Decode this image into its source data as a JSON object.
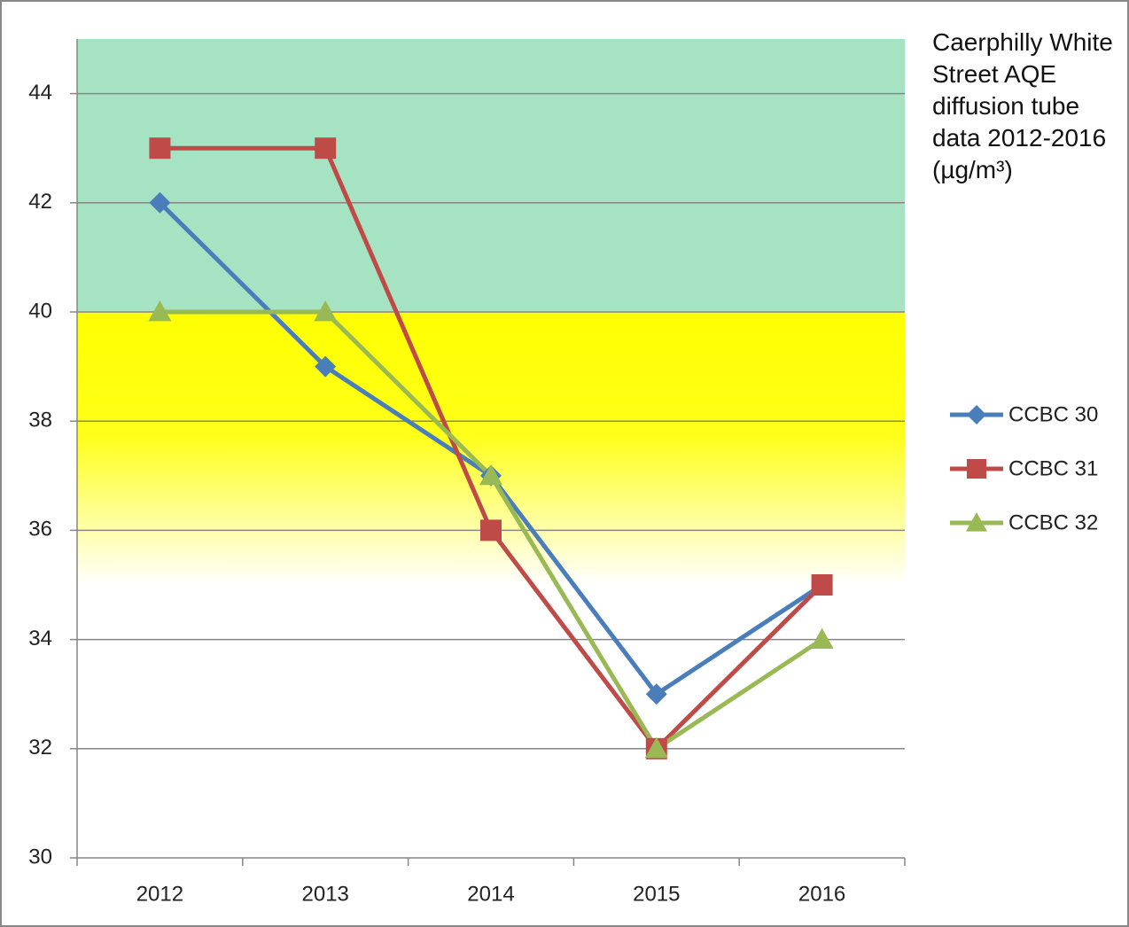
{
  "chart_data": {
    "type": "line",
    "title": "Caerphilly White Street AQE diffusion tube data 2012-2016 (µg/m³)",
    "categories": [
      "2012",
      "2013",
      "2014",
      "2015",
      "2016"
    ],
    "series": [
      {
        "name": "CCBC 30",
        "color": "#4a7ebb",
        "marker": "diamond",
        "values": [
          42,
          39,
          37,
          33,
          35
        ]
      },
      {
        "name": "CCBC 31",
        "color": "#be4b48",
        "marker": "square",
        "values": [
          43,
          43,
          36,
          32,
          35
        ]
      },
      {
        "name": "CCBC 32",
        "color": "#98b954",
        "marker": "triangle",
        "values": [
          40,
          40,
          37,
          32,
          34
        ]
      }
    ],
    "bands": [
      {
        "from": 40,
        "to": 45,
        "color": "#a6e3c2"
      },
      {
        "from": 35,
        "to": 40,
        "color": "#ffff00"
      }
    ],
    "ylim": [
      30,
      45
    ],
    "yticks": [
      30,
      32,
      34,
      36,
      38,
      40,
      42,
      44
    ],
    "grid": true,
    "legend": "right"
  }
}
